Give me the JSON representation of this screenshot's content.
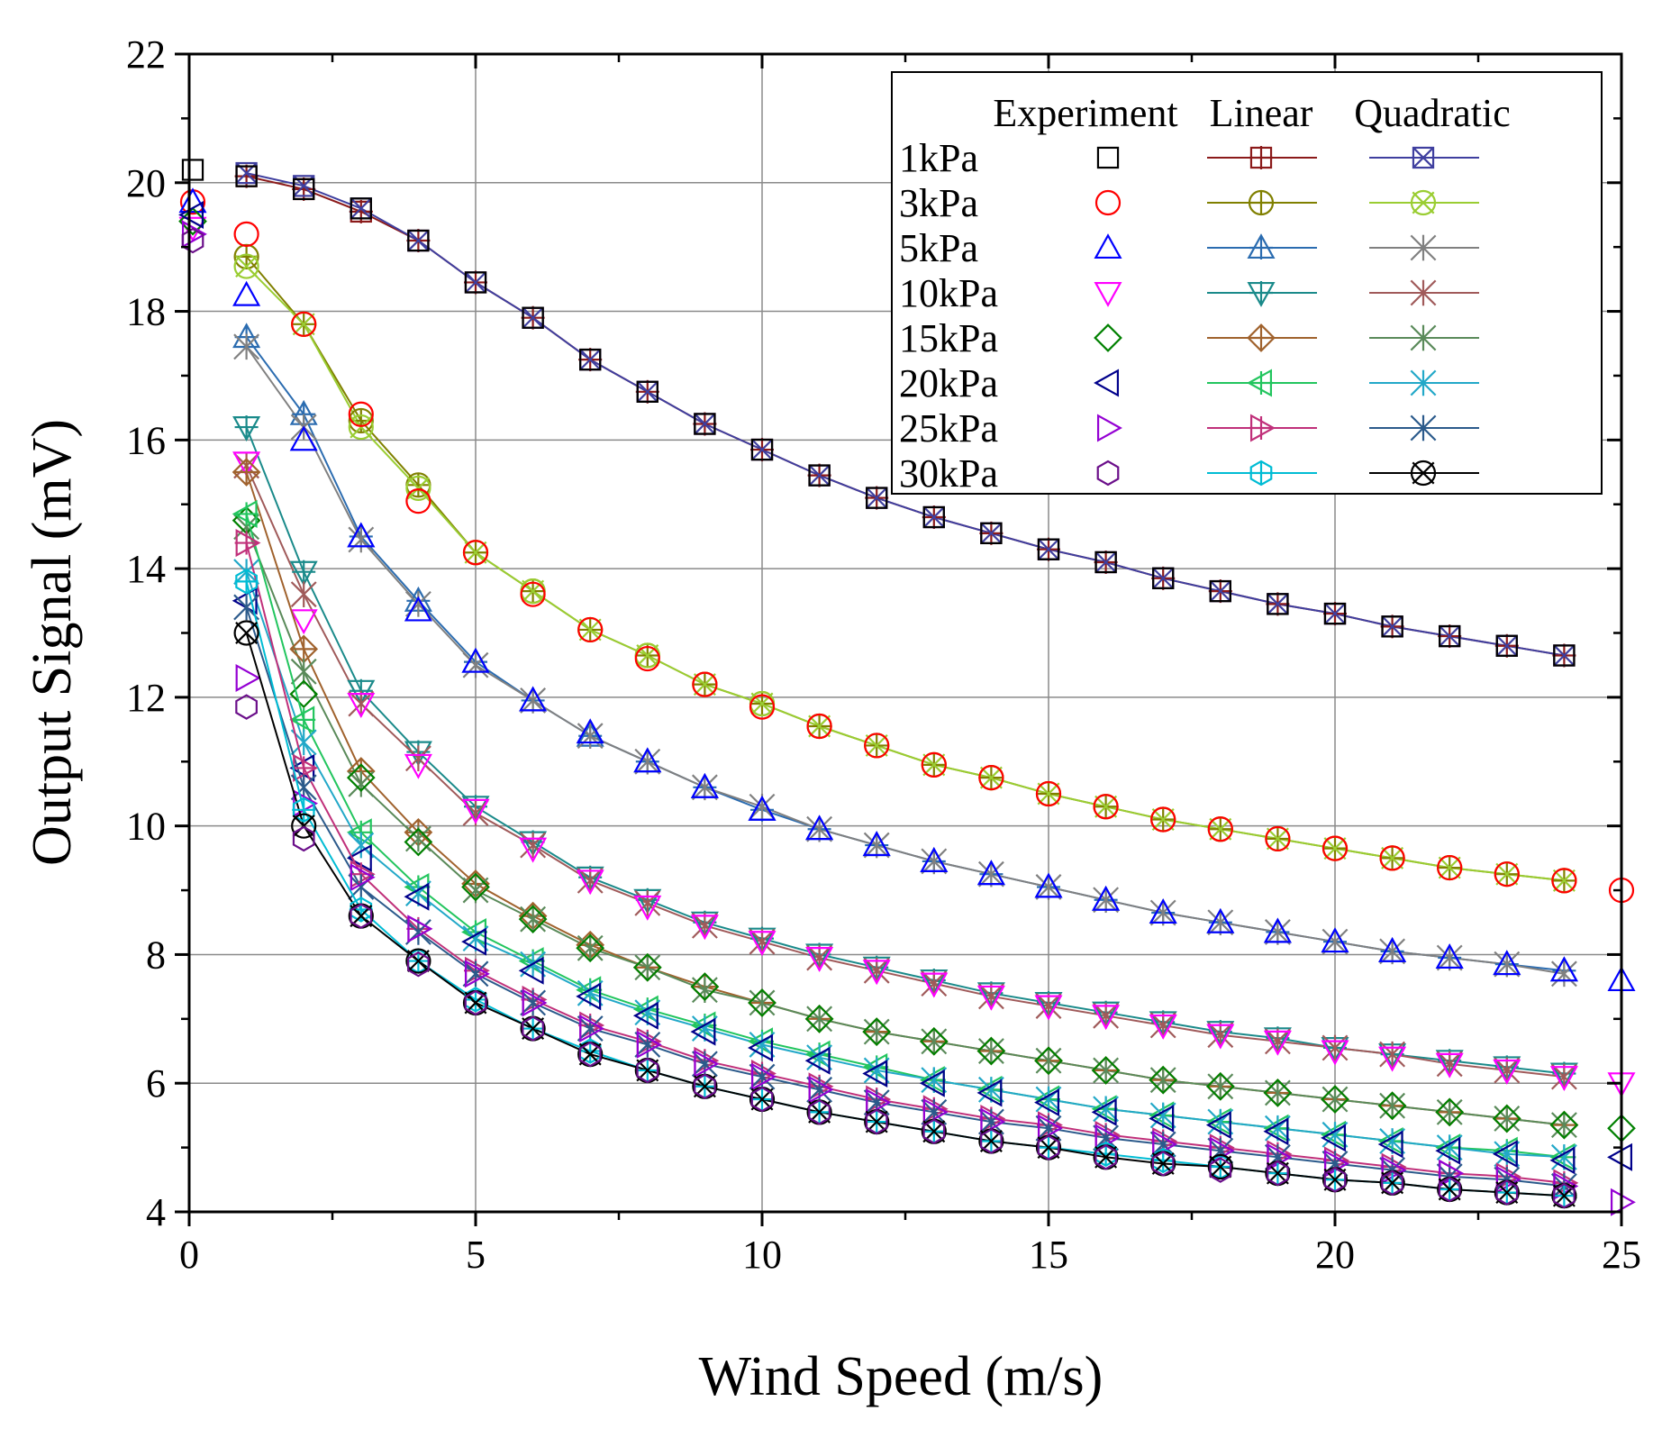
{
  "chart_data": {
    "type": "line",
    "xlabel": "Wind Speed  (m/s)",
    "ylabel": "Output Signal  (mV)",
    "xlim": [
      0,
      25
    ],
    "ylim": [
      4,
      22
    ],
    "xticks": [
      0,
      5,
      10,
      15,
      20,
      25
    ],
    "yticks": [
      4,
      6,
      8,
      10,
      12,
      14,
      16,
      18,
      20,
      22
    ],
    "grid": true,
    "legend": {
      "position": "top-right",
      "columns": [
        "Experiment",
        "Linear",
        "Quadratic"
      ]
    },
    "x": [
      1,
      2,
      3,
      4,
      5,
      6,
      7,
      8,
      9,
      10,
      11,
      12,
      13,
      14,
      15,
      16,
      17,
      18,
      19,
      20,
      21,
      22,
      23,
      24
    ],
    "series": [
      {
        "name": "1kPa",
        "x0": 20.2,
        "x25": null,
        "experiment": [
          20.1,
          19.9,
          19.6,
          19.1,
          18.45,
          17.9,
          17.25,
          16.75,
          16.25,
          15.85,
          15.45,
          15.1,
          14.8,
          14.55,
          14.3,
          14.1,
          13.85,
          13.65,
          13.45,
          13.3,
          13.1,
          12.95,
          12.8,
          12.65
        ],
        "linear": [
          20.1,
          19.9,
          19.55,
          19.1,
          18.45,
          17.9,
          17.25,
          16.75,
          16.25,
          15.85,
          15.45,
          15.1,
          14.8,
          14.55,
          14.3,
          14.1,
          13.85,
          13.65,
          13.45,
          13.3,
          13.1,
          12.95,
          12.8,
          12.65
        ],
        "quadratic": [
          20.15,
          19.95,
          19.6,
          19.1,
          18.45,
          17.9,
          17.25,
          16.75,
          16.25,
          15.85,
          15.45,
          15.1,
          14.8,
          14.55,
          14.3,
          14.1,
          13.85,
          13.65,
          13.45,
          13.3,
          13.1,
          12.95,
          12.8,
          12.65
        ],
        "exp_color": "#000000",
        "lin_color": "#8b1a1a",
        "quad_color": "#3f3f9f",
        "exp_marker": "square",
        "lin_marker": "square-plus",
        "quad_marker": "square-x"
      },
      {
        "name": "3kPa",
        "x0": 19.7,
        "x25": 9.0,
        "experiment": [
          19.2,
          17.8,
          16.4,
          15.05,
          14.25,
          13.6,
          13.05,
          12.6,
          12.2,
          11.85,
          11.55,
          11.25,
          10.95,
          10.75,
          10.5,
          10.3,
          10.1,
          9.95,
          9.8,
          9.65,
          9.5,
          9.35,
          9.25,
          9.15
        ],
        "linear": [
          18.85,
          17.8,
          16.3,
          15.3,
          14.25,
          13.65,
          13.05,
          12.65,
          12.2,
          11.9,
          11.55,
          11.25,
          10.95,
          10.75,
          10.5,
          10.3,
          10.1,
          9.95,
          9.8,
          9.65,
          9.5,
          9.35,
          9.25,
          9.15
        ],
        "quadratic": [
          18.7,
          17.8,
          16.2,
          15.25,
          14.25,
          13.65,
          13.05,
          12.65,
          12.2,
          11.9,
          11.55,
          11.25,
          10.95,
          10.75,
          10.5,
          10.3,
          10.1,
          9.95,
          9.8,
          9.65,
          9.5,
          9.35,
          9.25,
          9.15
        ],
        "exp_color": "#ff0000",
        "lin_color": "#808000",
        "quad_color": "#9acd32",
        "exp_marker": "circle",
        "lin_marker": "circle-plus",
        "quad_marker": "circle-x"
      },
      {
        "name": "5kPa",
        "x0": 19.7,
        "x25": 7.6,
        "experiment": [
          18.25,
          16.0,
          14.5,
          13.35,
          12.55,
          11.95,
          11.45,
          11.0,
          10.6,
          10.25,
          9.95,
          9.7,
          9.45,
          9.25,
          9.05,
          8.85,
          8.65,
          8.5,
          8.35,
          8.2,
          8.05,
          7.95,
          7.85,
          7.75
        ],
        "linear": [
          17.6,
          16.4,
          14.5,
          13.5,
          12.55,
          11.95,
          11.4,
          11.0,
          10.6,
          10.25,
          9.95,
          9.7,
          9.45,
          9.25,
          9.05,
          8.85,
          8.65,
          8.5,
          8.35,
          8.2,
          8.05,
          7.95,
          7.85,
          7.75
        ],
        "quadratic": [
          17.45,
          16.2,
          14.45,
          13.45,
          12.5,
          11.95,
          11.4,
          11.0,
          10.6,
          10.3,
          9.95,
          9.7,
          9.45,
          9.25,
          9.05,
          8.85,
          8.65,
          8.5,
          8.35,
          8.2,
          8.05,
          7.95,
          7.85,
          7.7
        ],
        "exp_color": "#0000ff",
        "lin_color": "#2b6cb0",
        "quad_color": "#808080",
        "exp_marker": "triangle-up",
        "lin_marker": "tri-up-plus",
        "quad_marker": "asterisk"
      },
      {
        "name": "10kPa",
        "x0": 19.3,
        "x25": 6.0,
        "experiment": [
          15.65,
          13.2,
          11.9,
          10.95,
          10.25,
          9.65,
          9.15,
          8.75,
          8.45,
          8.2,
          7.95,
          7.75,
          7.55,
          7.35,
          7.2,
          7.05,
          6.9,
          6.75,
          6.65,
          6.5,
          6.4,
          6.3,
          6.2,
          6.1
        ],
        "linear": [
          16.2,
          13.95,
          12.1,
          11.15,
          10.3,
          9.75,
          9.2,
          8.85,
          8.5,
          8.25,
          8.0,
          7.8,
          7.6,
          7.4,
          7.25,
          7.1,
          6.95,
          6.8,
          6.7,
          6.55,
          6.45,
          6.35,
          6.25,
          6.15
        ],
        "quadratic": [
          15.6,
          13.6,
          11.9,
          11.05,
          10.2,
          9.7,
          9.15,
          8.8,
          8.45,
          8.2,
          7.95,
          7.75,
          7.55,
          7.35,
          7.2,
          7.05,
          6.9,
          6.75,
          6.65,
          6.55,
          6.45,
          6.3,
          6.2,
          6.1
        ],
        "exp_color": "#ff00ff",
        "lin_color": "#1a8a8a",
        "quad_color": "#a05a5a",
        "exp_marker": "triangle-down",
        "lin_marker": "tri-down-plus",
        "quad_marker": "asterisk"
      },
      {
        "name": "15kPa",
        "x0": 19.4,
        "x25": 5.3,
        "experiment": [
          14.75,
          12.05,
          10.75,
          9.75,
          9.05,
          8.55,
          8.1,
          7.8,
          7.5,
          7.25,
          7.0,
          6.8,
          6.65,
          6.5,
          6.35,
          6.2,
          6.05,
          5.95,
          5.85,
          5.75,
          5.65,
          5.55,
          5.45,
          5.35
        ],
        "linear": [
          15.5,
          12.75,
          10.85,
          9.9,
          9.1,
          8.6,
          8.15,
          7.8,
          7.5,
          7.25,
          7.0,
          6.8,
          6.65,
          6.5,
          6.35,
          6.2,
          6.05,
          5.95,
          5.85,
          5.75,
          5.65,
          5.55,
          5.45,
          5.35
        ],
        "quadratic": [
          14.65,
          12.4,
          10.65,
          9.8,
          9.0,
          8.55,
          8.1,
          7.8,
          7.45,
          7.25,
          7.0,
          6.8,
          6.65,
          6.5,
          6.35,
          6.2,
          6.05,
          5.95,
          5.85,
          5.75,
          5.65,
          5.55,
          5.45,
          5.35
        ],
        "exp_color": "#008000",
        "lin_color": "#a0622d",
        "quad_color": "#5a8a5a",
        "exp_marker": "diamond",
        "lin_marker": "diamond-plus",
        "quad_marker": "asterisk"
      },
      {
        "name": "20kPa",
        "x0": 19.5,
        "x25": 4.85,
        "experiment": [
          13.5,
          10.9,
          9.5,
          8.9,
          8.2,
          7.75,
          7.35,
          7.05,
          6.8,
          6.55,
          6.35,
          6.15,
          6.0,
          5.85,
          5.7,
          5.55,
          5.45,
          5.35,
          5.25,
          5.15,
          5.05,
          4.95,
          4.9,
          4.8
        ],
        "linear": [
          14.85,
          11.65,
          9.9,
          9.05,
          8.35,
          7.9,
          7.45,
          7.15,
          6.9,
          6.65,
          6.45,
          6.25,
          6.05,
          5.9,
          5.75,
          5.6,
          5.5,
          5.4,
          5.3,
          5.2,
          5.1,
          5.0,
          4.95,
          4.85
        ],
        "quadratic": [
          13.95,
          11.3,
          9.7,
          8.95,
          8.25,
          7.85,
          7.4,
          7.1,
          6.85,
          6.6,
          6.4,
          6.2,
          6.05,
          5.9,
          5.75,
          5.6,
          5.5,
          5.4,
          5.3,
          5.2,
          5.1,
          5.0,
          4.9,
          4.85
        ],
        "exp_color": "#00008b",
        "lin_color": "#22c55e",
        "quad_color": "#22a8c8",
        "exp_marker": "triangle-left",
        "lin_marker": "tri-left-plus",
        "quad_marker": "asterisk"
      },
      {
        "name": "25kPa",
        "x0": 19.2,
        "x25": 4.15,
        "experiment": [
          12.3,
          10.35,
          9.2,
          8.4,
          7.7,
          7.25,
          6.85,
          6.6,
          6.3,
          6.1,
          5.9,
          5.7,
          5.55,
          5.4,
          5.3,
          5.15,
          5.05,
          4.95,
          4.85,
          4.75,
          4.65,
          4.6,
          4.5,
          4.4
        ],
        "linear": [
          14.4,
          10.9,
          9.25,
          8.4,
          7.75,
          7.3,
          6.9,
          6.65,
          6.35,
          6.15,
          5.95,
          5.75,
          5.6,
          5.45,
          5.35,
          5.2,
          5.1,
          5.0,
          4.9,
          4.8,
          4.7,
          4.6,
          4.55,
          4.45
        ],
        "quadratic": [
          13.4,
          10.6,
          9.05,
          8.35,
          7.7,
          7.25,
          6.85,
          6.6,
          6.3,
          6.1,
          5.9,
          5.7,
          5.55,
          5.4,
          5.3,
          5.15,
          5.05,
          4.95,
          4.85,
          4.75,
          4.65,
          4.55,
          4.5,
          4.4
        ],
        "exp_color": "#9400d3",
        "lin_color": "#c0307a",
        "quad_color": "#2b5a8b",
        "exp_marker": "triangle-right",
        "lin_marker": "tri-right-plus",
        "quad_marker": "asterisk"
      },
      {
        "name": "30kPa",
        "x0": 19.1,
        "x25": null,
        "experiment": [
          11.85,
          9.8,
          8.6,
          7.85,
          7.25,
          6.85,
          6.45,
          6.2,
          5.95,
          5.75,
          5.55,
          5.4,
          5.25,
          5.1,
          5.0,
          4.85,
          4.75,
          4.65,
          4.6,
          4.5,
          4.45,
          4.35,
          4.3,
          4.25
        ],
        "linear": [
          13.8,
          10.25,
          8.7,
          7.9,
          7.3,
          6.85,
          6.5,
          6.2,
          5.95,
          5.75,
          5.55,
          5.4,
          5.25,
          5.1,
          5.0,
          4.9,
          4.8,
          4.7,
          4.6,
          4.5,
          4.45,
          4.35,
          4.3,
          4.25
        ],
        "quadratic": [
          13.0,
          10.0,
          8.6,
          7.9,
          7.25,
          6.85,
          6.45,
          6.2,
          5.95,
          5.75,
          5.55,
          5.4,
          5.25,
          5.1,
          5.0,
          4.85,
          4.75,
          4.7,
          4.6,
          4.5,
          4.45,
          4.35,
          4.3,
          4.25
        ],
        "exp_color": "#6b0f8a",
        "lin_color": "#00bcd4",
        "quad_color": "#000000",
        "exp_marker": "hexagon",
        "lin_marker": "hexagon-plus",
        "quad_marker": "circle-x"
      }
    ]
  }
}
